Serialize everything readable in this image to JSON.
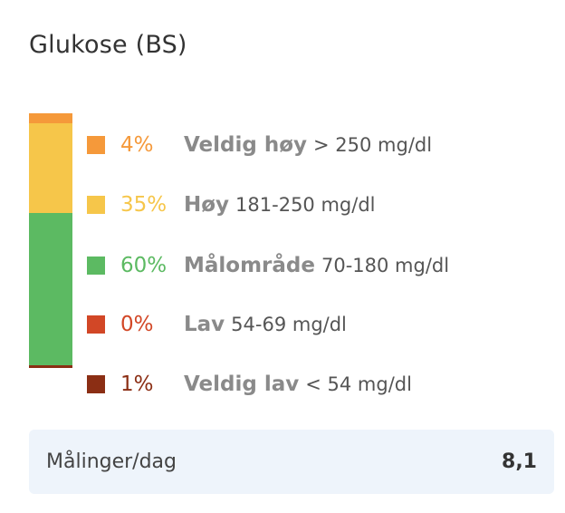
{
  "card": {
    "title": "Glukose (BS)"
  },
  "ranges": [
    {
      "percent": "4%",
      "name": "Veldig høy",
      "description": "> 250 mg/dl",
      "color": "#f5993a",
      "value": 4
    },
    {
      "percent": "35%",
      "name": "Høy",
      "description": "181-250 mg/dl",
      "color": "#f6c64a",
      "value": 35
    },
    {
      "percent": "60%",
      "name": "Målområde",
      "description": "70-180 mg/dl",
      "color": "#5cba62",
      "value": 60
    },
    {
      "percent": "0%",
      "name": "Lav",
      "description": "54-69 mg/dl",
      "color": "#d24726",
      "value": 0
    },
    {
      "percent": "1%",
      "name": "Veldig lav",
      "description": "< 54 mg/dl",
      "color": "#8b2e14",
      "value": 1
    }
  ],
  "footer": {
    "label": "Målinger/dag",
    "value": "8,1"
  }
}
